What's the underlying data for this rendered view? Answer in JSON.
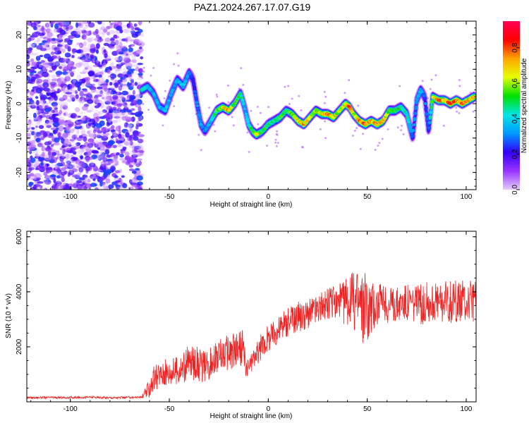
{
  "title": "PAZ1.2024.267.17.07.G19",
  "chart_data": [
    {
      "type": "heatmap",
      "xlabel": "Height of straight line (km)",
      "ylabel": "Frequency (Hz)",
      "xlim": [
        -122,
        105
      ],
      "ylim": [
        -25,
        24
      ],
      "xticks": [
        -100,
        -50,
        0,
        50,
        100
      ],
      "yticks": [
        -20,
        -10,
        0,
        10,
        20
      ],
      "colorbar": {
        "label": "Normalized spectral amplitude",
        "range": [
          0,
          0.95
        ],
        "ticks": [
          0.0,
          0.2,
          0.4,
          0.6,
          0.8
        ],
        "colormap": [
          "#e6ccff",
          "#9933ff",
          "#3300ff",
          "#0099ff",
          "#00e5e5",
          "#00e000",
          "#e6ff00",
          "#ffa500",
          "#ff0000",
          "#ff0055"
        ]
      },
      "noise_region_x": [
        -122,
        -64
      ],
      "ridge": {
        "x": [
          -64,
          -61,
          -58,
          -55,
          -52,
          -49,
          -46,
          -43,
          -40,
          -38,
          -36,
          -34,
          -32,
          -29,
          -26,
          -23,
          -20,
          -17,
          -14,
          -12,
          -10,
          -8,
          -6,
          -3,
          0,
          3,
          6,
          9,
          12,
          15,
          18,
          21,
          24,
          27,
          30,
          33,
          36,
          39,
          41,
          43,
          46,
          49,
          52,
          55,
          58,
          61,
          64,
          67,
          70,
          73,
          75,
          77,
          79,
          81,
          83,
          86,
          89,
          92,
          95,
          98,
          101,
          104
        ],
        "y": [
          4,
          5,
          3,
          -1,
          -2,
          3,
          7,
          5,
          9,
          7,
          0,
          -6,
          -8,
          -5,
          -2,
          -1,
          -2,
          0,
          3,
          -1,
          -6,
          -8,
          -9,
          -8,
          -6,
          -5,
          -4,
          -2,
          -3,
          -5,
          -6,
          -4,
          -2,
          -3,
          -3,
          -4,
          -2,
          0,
          -1,
          -3,
          -5,
          -6,
          -5,
          -6,
          -5,
          -2,
          -2,
          -1,
          -3,
          -10,
          1,
          4,
          2,
          -8,
          2,
          1,
          1,
          0,
          1,
          0,
          1,
          2
        ],
        "amplitude": [
          0.45,
          0.4,
          0.35,
          0.35,
          0.4,
          0.35,
          0.35,
          0.4,
          0.3,
          0.25,
          0.3,
          0.35,
          0.3,
          0.4,
          0.55,
          0.65,
          0.75,
          0.55,
          0.5,
          0.35,
          0.4,
          0.55,
          0.65,
          0.55,
          0.5,
          0.5,
          0.55,
          0.5,
          0.6,
          0.7,
          0.75,
          0.65,
          0.6,
          0.7,
          0.75,
          0.7,
          0.6,
          0.7,
          0.85,
          0.6,
          0.75,
          0.85,
          0.7,
          0.8,
          0.75,
          0.6,
          0.55,
          0.5,
          0.45,
          0.3,
          0.35,
          0.4,
          0.3,
          0.3,
          0.6,
          0.8,
          0.75,
          0.85,
          0.8,
          0.8,
          0.75,
          0.7
        ]
      }
    },
    {
      "type": "line",
      "xlabel": "Height of straight line (km)",
      "ylabel": "SNR (10 * v/v)",
      "xlim": [
        -122,
        105
      ],
      "ylim": [
        0,
        6200
      ],
      "xticks": [
        -100,
        -50,
        0,
        50,
        100
      ],
      "yticks": [
        2000,
        4000,
        6000
      ],
      "color": "#ee2222",
      "series": [
        {
          "x": [
            -122,
            -110,
            -100,
            -90,
            -80,
            -70,
            -64,
            -61,
            -58,
            -55,
            -52,
            -49,
            -46,
            -43,
            -40,
            -37,
            -34,
            -31,
            -28,
            -25,
            -22,
            -19,
            -16,
            -13,
            -11,
            -9,
            -7,
            -5,
            -3,
            0,
            3,
            6,
            9,
            12,
            15,
            18,
            21,
            24,
            27,
            30,
            33,
            36,
            39,
            42,
            45,
            48,
            51,
            54,
            57,
            60,
            63,
            66,
            69,
            72,
            75,
            78,
            81,
            84,
            87,
            90,
            93,
            96,
            99,
            102,
            105
          ],
          "y": [
            150,
            160,
            150,
            170,
            150,
            160,
            170,
            400,
            800,
            1000,
            1050,
            1100,
            1150,
            1250,
            1400,
            1450,
            1300,
            1250,
            1550,
            1650,
            1800,
            1750,
            1900,
            1950,
            1200,
            1400,
            1600,
            1850,
            2050,
            2300,
            2500,
            2700,
            2800,
            3000,
            3100,
            3150,
            3250,
            3350,
            3450,
            3550,
            3600,
            3600,
            3650,
            3700,
            3650,
            3450,
            3400,
            3550,
            3600,
            3500,
            3550,
            3600,
            3650,
            3600,
            3550,
            3550,
            3650,
            3650,
            3600,
            3650,
            3600,
            3650,
            3650,
            3650,
            3650
          ],
          "amplitude": [
            40,
            40,
            40,
            40,
            40,
            40,
            40,
            300,
            500,
            450,
            500,
            500,
            550,
            550,
            700,
            650,
            600,
            550,
            550,
            600,
            650,
            700,
            700,
            800,
            300,
            350,
            400,
            450,
            500,
            500,
            500,
            550,
            550,
            550,
            550,
            550,
            550,
            550,
            550,
            600,
            650,
            750,
            850,
            1000,
            1300,
            1400,
            1200,
            900,
            700,
            650,
            650,
            650,
            700,
            700,
            700,
            750,
            750,
            700,
            700,
            750,
            800,
            800,
            800,
            800,
            750
          ]
        }
      ]
    }
  ]
}
